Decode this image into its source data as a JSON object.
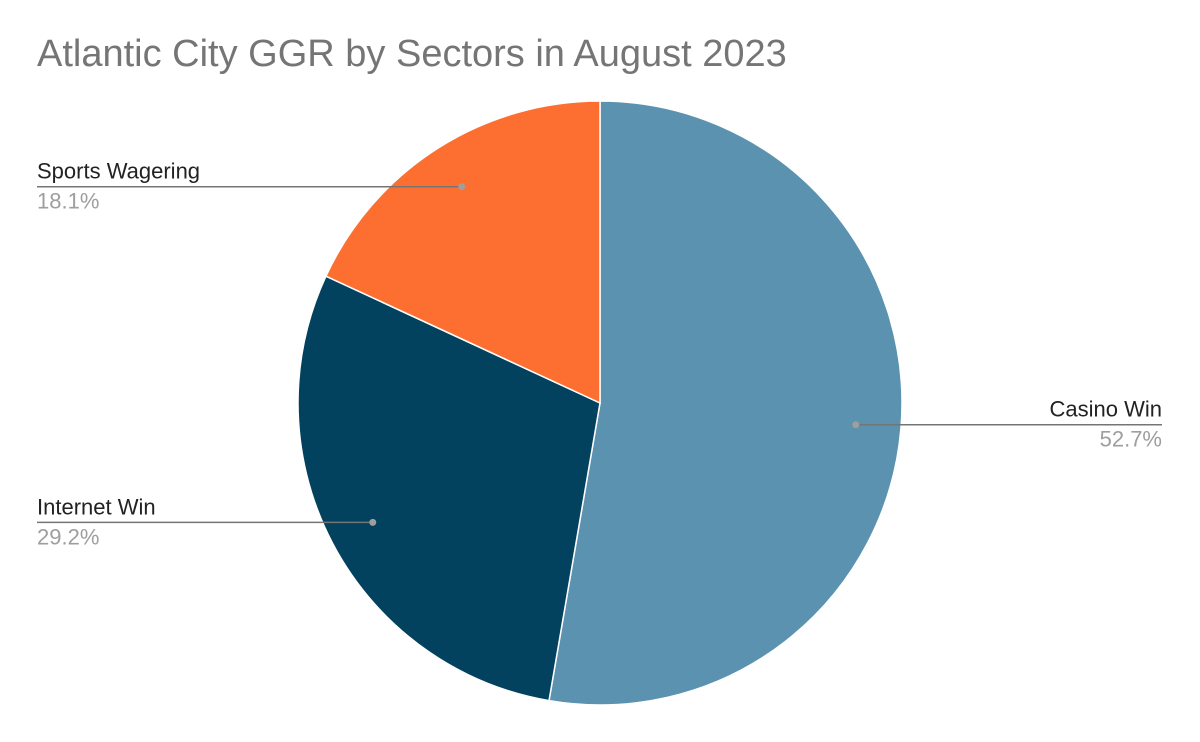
{
  "chart_data": {
    "type": "pie",
    "title": "Atlantic City GGR by Sectors in August 2023",
    "start_angle_deg": 0,
    "direction": "clockwise",
    "slices": [
      {
        "label": "Casino Win",
        "value": 52.7,
        "percent_label": "52.7%",
        "color": "#5a92b0",
        "label_side": "right"
      },
      {
        "label": "Internet Win",
        "value": 29.2,
        "percent_label": "29.2%",
        "color": "#02425f",
        "label_side": "left"
      },
      {
        "label": "Sports Wagering",
        "value": 18.1,
        "percent_label": "18.1%",
        "color": "#fd6f30",
        "label_side": "left"
      }
    ],
    "legend": "none",
    "leader_line_color": "#757575"
  }
}
